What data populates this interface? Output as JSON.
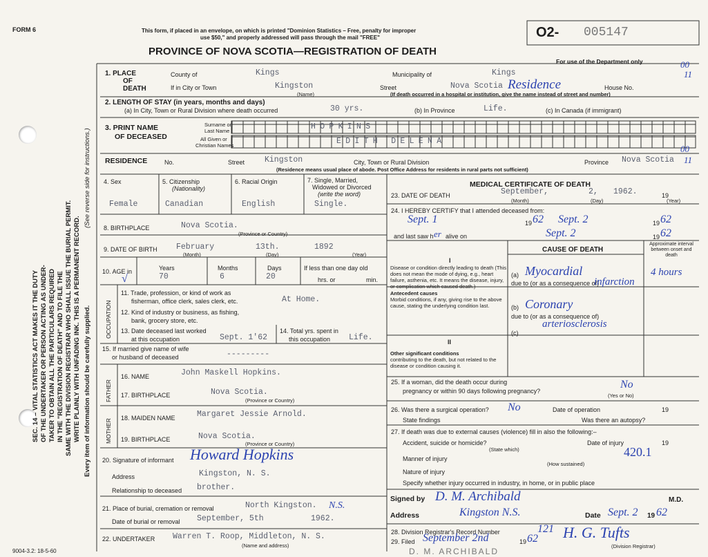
{
  "header": {
    "form": "FORM 6",
    "notice_1": "This form, if placed in an envelope, on which is printed \"Dominion Statistics – Free, penalty for improper",
    "notice_2": "use $50,\" and properly addressed will pass through the mail \"FREE\"",
    "title": "PROVINCE OF NOVA SCOTIA—REGISTRATION OF DEATH",
    "reg_prefix": "O2-",
    "reg_number": "005147",
    "department": "For use of the Department only",
    "dept_mark_top": "00",
    "dept_mark_bottom": "11",
    "res_mark_top": "00",
    "res_mark_bottom": "11"
  },
  "side": {
    "line_1": "SEC. 14 – VITAL STATISTICS ACT MAKES IT THE DUTY",
    "line_2": "OF THE UNDERTAKER OR PERSON ACTING AS UNDER-",
    "line_3": "TAKER TO OBTAIN ALL THE PARTICULARS REQUIRED",
    "line_4": "IN THE \"REGISTRATION OF DEATH\" AND TO FILE THE",
    "line_5": "SAME WITH THE DIVISION REGISTRAR WHO SHALL ISSUE THE BURIAL PERMIT.",
    "line_6": "WRITE PLAINLY WITH UNFADING INK. THIS IS A PERMANENT RECORD.",
    "line_7": "(See reverse side for instructions.)",
    "line_8": "Every item of information should be carefully supplied."
  },
  "place_of_death": {
    "label_1": "1. PLACE",
    "label_2": "OF",
    "label_3": "DEATH",
    "county_label": "County of",
    "county": "Kings",
    "municipality_label": "Municipality of",
    "municipality": "Kings",
    "city_label": "If in City or Town",
    "city": "Kingston",
    "name_hint": "(Name)",
    "street_label": "Street",
    "street": "Nova Scotia",
    "residence_note": "Residence",
    "house_label": "House No.",
    "hospital_note": "(If death occurred in a hospital or institution, give the name instead of street and number)"
  },
  "length_of_stay": {
    "label": "2. LENGTH OF STAY (in years, months and days)",
    "city_label": "(a) In City, Town or Rural Division where death occurred",
    "city": "30 yrs.",
    "province_label": "(b) In Province",
    "province": "Life.",
    "canada_label": "(c) In Canada (if immigrant)"
  },
  "name": {
    "label_1": "3. PRINT NAME",
    "label_2": "OF DECEASED",
    "surname_label_1": "Surname or",
    "surname_label_2": "Last Name",
    "surname": "HOPKINS",
    "given_label_1": "All Given or",
    "given_label_2": "Christian Names",
    "given": "EDITH DELENA"
  },
  "residence": {
    "label": "RESIDENCE",
    "no_label": "No.",
    "street_label": "Street",
    "street": "Kingston",
    "city_label": "City, Town or Rural Division",
    "province_label": "Province",
    "province": "Nova Scotia",
    "note": "(Residence means usual place of abode. Post Office Address for residents in rural parts not sufficient)"
  },
  "personal": {
    "sex_label": "4. Sex",
    "sex": "Female",
    "citizenship_label_1": "5. Citizenship",
    "citizenship_label_2": "(Nationality)",
    "citizenship": "Canadian",
    "racial_label": "6. Racial Origin",
    "racial": "English",
    "marital_label_1": "7. Single, Married,",
    "marital_label_2": "Widowed or Divorced",
    "marital_label_3": "(write the word)",
    "marital": "Single."
  },
  "birthplace": {
    "label": "8. BIRTHPLACE",
    "value": "Nova Scotia.",
    "hint": "(Province or Country)"
  },
  "birth_date": {
    "label": "9. DATE OF BIRTH",
    "month": "February",
    "day": "13th.",
    "year": 1892,
    "month_hint": "(Month)",
    "day_hint": "(Day)",
    "year_hint": "(Year)"
  },
  "age": {
    "label": "10. AGE in",
    "check": "√",
    "years_label": "Years",
    "months_label": "Months",
    "days_label": "Days",
    "years": 70,
    "months": 6,
    "days": 20,
    "infant_label": "If less than one day old",
    "hrs_label": "hrs. or",
    "min_label": "min."
  },
  "occupation": {
    "heading": "OCCUPATION",
    "trade_label_1": "11. Trade, profession, or kind of work as",
    "trade_label_2": "fisherman, office clerk, sales clerk, etc.",
    "trade": "At Home.",
    "industry_label_1": "12. Kind of industry or business, as fishing,",
    "industry_label_2": "bank, grocery store, etc.",
    "last_worked_label_1": "13. Date deceased last worked",
    "last_worked_label_2": "at this occupation",
    "last_worked": "Sept. 1'62",
    "total_label_1": "14. Total yrs. spent in",
    "total_label_2": "this occupation",
    "total": "Life."
  },
  "spouse": {
    "label_1": "15. If married give name of wife",
    "label_2": "or husband of deceased",
    "value": "---------"
  },
  "father": {
    "heading": "FATHER",
    "name_label": "16. NAME",
    "name": "John Maskell Hopkins.",
    "birthplace_label": "17. BIRTHPLACE",
    "birthplace": "Nova Scotia.",
    "hint": "(Province or Country)"
  },
  "mother": {
    "heading": "MOTHER",
    "name_label": "18. MAIDEN NAME",
    "name": "Margaret Jessie Arnold.",
    "birthplace_label": "19. BIRTHPLACE",
    "birthplace": "Nova Scotia.",
    "hint": "(Province or Country)"
  },
  "informant": {
    "label": "20. Signature of informant",
    "signature": "Howard Hopkins",
    "address_label": "Address",
    "address": "Kingston, N. S.",
    "relationship_label": "Relationship to deceased",
    "relationship": "brother."
  },
  "burial": {
    "place_label": "21. Place of burial, cremation or removal",
    "place": "North Kingston.",
    "place_note": "N.S.",
    "date_label": "Date of burial or removal",
    "date": "September, 5th",
    "year": "1962."
  },
  "undertaker": {
    "label": "22. UNDERTAKER",
    "value": "Warren T. Roop, Middleton, N. S.",
    "hint": "(Name and address)"
  },
  "footer": {
    "code": "9004-3.2: 18-5-60"
  },
  "medical": {
    "title": "MEDICAL CERTIFICATE OF DEATH",
    "death_label": "23. DATE OF DEATH",
    "death_month": "September,",
    "death_day": "2,",
    "death_year": "1962.",
    "year_prefix": "19",
    "month_hint": "(Month)",
    "day_hint": "(Day)",
    "year_hint": "(Year)",
    "certify_label": "24. I HEREBY CERTIFY that I attended deceased from:",
    "attended_from": "Sept. 1",
    "from_year_prefix": "19",
    "from_year": "62",
    "attended_to": "Sept. 2",
    "to_year_prefix": "19",
    "to_year": "62",
    "last_saw_label_1": "and last saw h",
    "last_saw_hw": "er",
    "last_saw_label_2": "alive on",
    "last_saw": "Sept. 2",
    "last_year_prefix": "19",
    "last_year": "62"
  },
  "cause": {
    "heading": "CAUSE OF DEATH",
    "interval_heading": "Approximate interval between onset and death",
    "part_1": "I",
    "direct_label": "Disease or condition directly leading to death (This does not mean the mode of dying, e.g., heart failure, asthenia, etc. It means the disease, injury, or complication which caused death.)",
    "a_label": "(a)",
    "a": "Myocardial",
    "a_cont": "infarction",
    "a_interval": "4 hours",
    "due_a": "due to (or as a consequence of)",
    "antecedent_label_1": "Antecedent causes",
    "antecedent_label_2": "Morbid conditions, if any, giving rise to the above cause, stating the underlying condition last.",
    "b_label": "(b)",
    "b": "Coronary",
    "due_b": "due to (or as a consequence of)",
    "b_cont": "arteriosclerosis",
    "c_label": "(c)",
    "part_2": "II",
    "other_label_1": "Other significant conditions",
    "other_label_2": "contributing to the death, but not related to the disease or condition causing it."
  },
  "inquiry": {
    "pregnancy_label_1": "25. If a woman, did the death occur during",
    "pregnancy_label_2": "pregnancy or within 90 days following pregnancy?",
    "pregnancy": "No",
    "yes_no": "(Yes or No)",
    "operation_label": "26. Was there a surgical operation?",
    "operation": "No",
    "operation_date_label": "Date of operation",
    "operation_year_prefix": "19",
    "findings_label": "State findings",
    "autopsy_label": "Was there an autopsy?",
    "external_label": "27. If death was due to external causes (violence) fill in also the following:–",
    "accident_label": "Accident, suicide or homicide?",
    "state_which": "(State which)",
    "injury_date_label": "Date of injury",
    "injury_year_prefix": "19",
    "manner_label": "Manner of injury",
    "how_sustained": "(How sustained)",
    "code": "420.1",
    "nature_label": "Nature of injury",
    "specify_label": "Specify whether injury occurred in industry, in home, or in public place"
  },
  "certifier": {
    "signed_label": "Signed by",
    "signature": "D. M. Archibald",
    "md": "M.D.",
    "address_label": "Address",
    "address": "Kingston N.S.",
    "date_label": "Date",
    "date": "Sept. 2",
    "year_prefix": "19",
    "year": "62",
    "record_label": "28. Division Registrar's Record Number",
    "record": "121",
    "filed_label": "29. Filed",
    "filed": "September 2nd",
    "filed_year_prefix": "19",
    "filed_year": "62",
    "registrar": "H. G. Tufts",
    "registrar_hint": "(Division Registrar)",
    "stamp": "D. M. ARCHIBALD"
  }
}
